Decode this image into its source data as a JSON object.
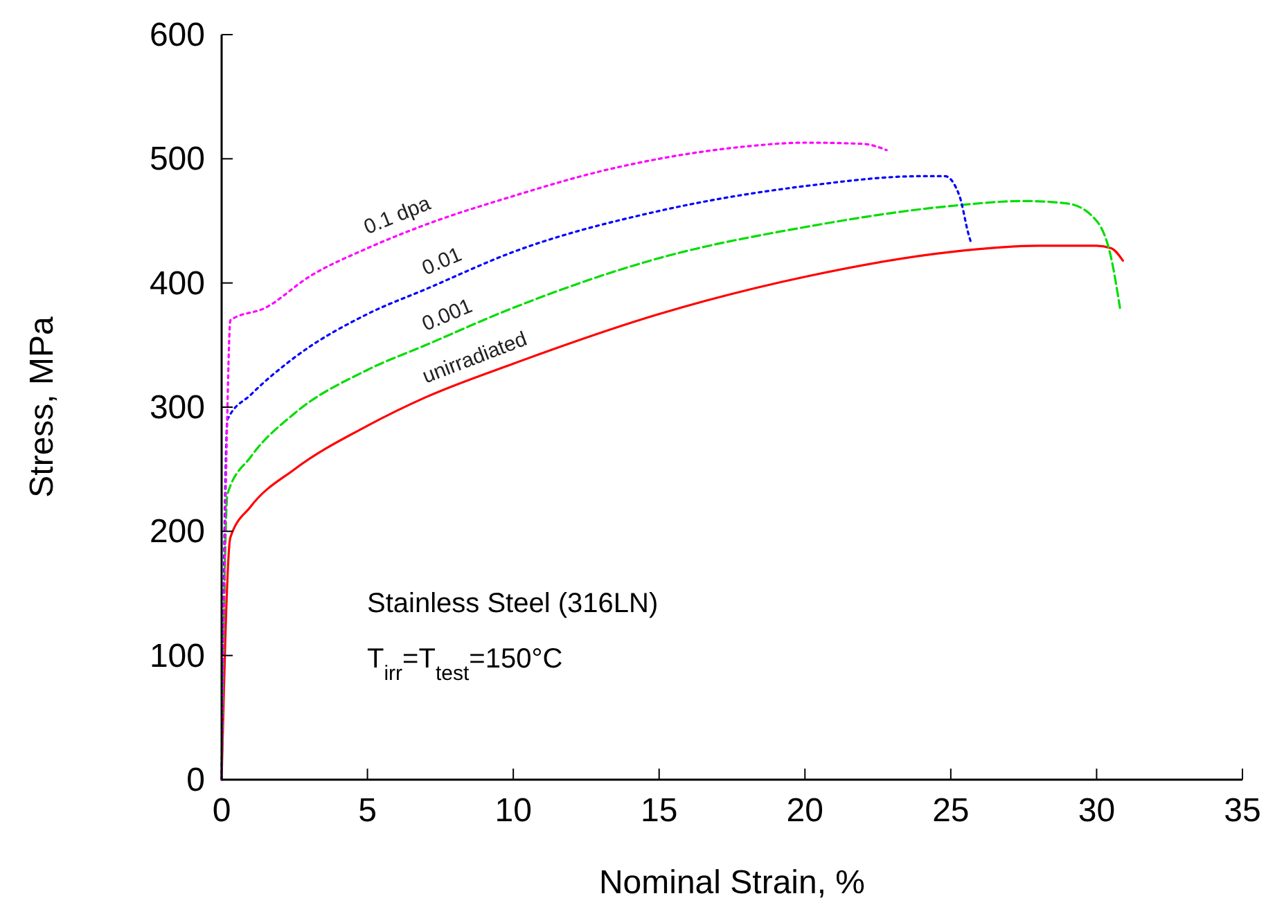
{
  "chart_data": {
    "type": "line",
    "xlabel": "Nominal Strain, %",
    "ylabel": "Stress, MPa",
    "xlim": [
      0,
      35
    ],
    "ylim": [
      0,
      600
    ],
    "xticks": [
      0,
      5,
      10,
      15,
      20,
      25,
      30,
      35
    ],
    "yticks": [
      0,
      100,
      200,
      300,
      400,
      500,
      600
    ],
    "grid": false,
    "marker": "none",
    "annotations": [
      "Stainless Steel (316LN)",
      "T$_{irr}$=T$_{test}$=150°C"
    ],
    "series": [
      {
        "name": "unirradiated",
        "color": "#ff0000",
        "line_style": "solid",
        "x": [
          0,
          0.3,
          1,
          2.5,
          5,
          7,
          10,
          15,
          20,
          25,
          28,
          30,
          30.5,
          30.9
        ],
        "values": [
          0,
          195,
          220,
          250,
          285,
          308,
          335,
          375,
          405,
          425,
          430,
          430,
          428,
          418
        ]
      },
      {
        "name": "0.001",
        "color": "#00dd00",
        "line_style": "dashed",
        "x": [
          0,
          0.2,
          1,
          2.5,
          5,
          7,
          10,
          15,
          20,
          25,
          27.5,
          29,
          30,
          30.5,
          30.8
        ],
        "values": [
          0,
          230,
          260,
          295,
          330,
          350,
          380,
          420,
          445,
          462,
          466,
          464,
          450,
          420,
          380
        ]
      },
      {
        "name": "0.01",
        "color": "#0000ff",
        "line_style": "dotted",
        "x": [
          0,
          0.2,
          1,
          2.5,
          5,
          7,
          10,
          15,
          20,
          24,
          24.8,
          25.3,
          25.6,
          25.7
        ],
        "values": [
          0,
          290,
          310,
          340,
          375,
          395,
          425,
          458,
          478,
          486,
          486,
          470,
          440,
          432
        ]
      },
      {
        "name": "0.1 dpa",
        "color": "#ff00ff",
        "line_style": "dotted",
        "x": [
          0,
          0.2,
          0.3,
          1.5,
          3,
          5,
          7,
          10,
          13,
          15,
          18,
          20,
          22,
          22.8
        ],
        "values": [
          0,
          300,
          370,
          380,
          405,
          428,
          447,
          470,
          490,
          500,
          510,
          513,
          512,
          507
        ]
      }
    ]
  }
}
